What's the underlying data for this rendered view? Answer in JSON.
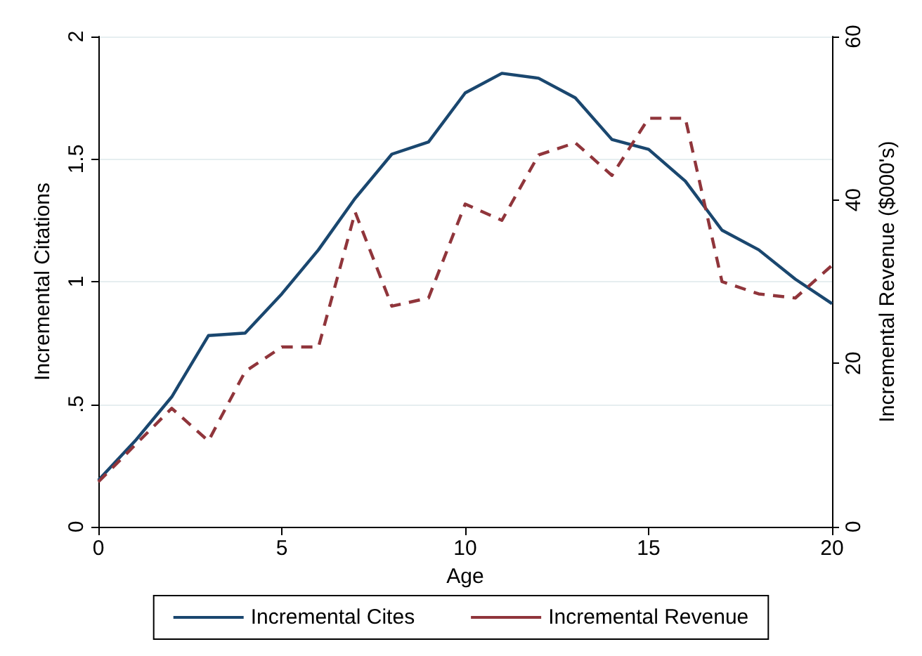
{
  "chart_data": {
    "type": "line",
    "xlabel": "Age",
    "ylabel": "Incremental Citations",
    "y2label": "Incremental Revenue ($000's)",
    "x": [
      0,
      1,
      2,
      3,
      4,
      5,
      6,
      7,
      8,
      9,
      10,
      11,
      12,
      13,
      14,
      15,
      16,
      17,
      18,
      19,
      20
    ],
    "series": [
      {
        "name": "Incremental Cites",
        "color": "#1a476f",
        "line_style": "solid",
        "values": [
          0.19,
          0.35,
          0.53,
          0.78,
          0.79,
          0.95,
          1.13,
          1.34,
          1.52,
          1.57,
          1.77,
          1.85,
          1.83,
          1.75,
          1.58,
          1.54,
          1.41,
          1.21,
          1.13,
          1.01,
          0.91
        ]
      },
      {
        "name": "Incremental Revenue",
        "color": "#90353b",
        "line_style": "dashed",
        "axis": "y2",
        "values": [
          5.5,
          10,
          14.5,
          10.5,
          19,
          22,
          22,
          38.5,
          27,
          28,
          39.5,
          37.5,
          45.5,
          47,
          43,
          50,
          50,
          30,
          28.5,
          28,
          32
        ]
      }
    ],
    "xlim": [
      0,
      20
    ],
    "xticks": [
      0,
      5,
      10,
      15,
      20
    ],
    "ylim": [
      0,
      2
    ],
    "yticks": [
      0,
      {
        "value": 0.5,
        "label": ".5"
      },
      1,
      {
        "value": 1.5,
        "label": "1.5"
      },
      2
    ],
    "y2lim": [
      0,
      60
    ],
    "y2ticks": [
      0,
      20,
      40,
      60
    ],
    "grid": "y",
    "legend": "bottom",
    "marker": "none"
  }
}
